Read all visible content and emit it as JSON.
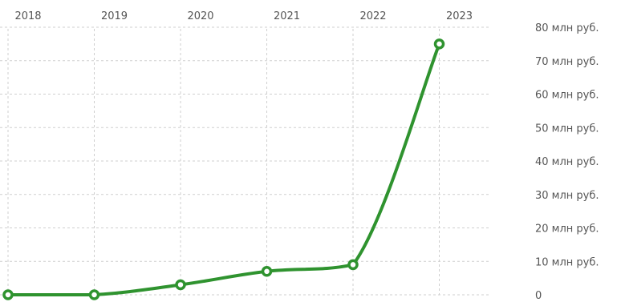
{
  "chart_data": {
    "type": "line",
    "x": [
      "2018",
      "2019",
      "2020",
      "2021",
      "2022",
      "2023"
    ],
    "series": [
      {
        "values": [
          0,
          0,
          3,
          7,
          9,
          75
        ],
        "color": "#2f932f"
      }
    ],
    "x_ticks": [
      "2018",
      "2019",
      "2020",
      "2021",
      "2022",
      "2023"
    ],
    "y_ticks": [
      {
        "value": 0,
        "label": "0"
      },
      {
        "value": 10,
        "label": "10 млн руб."
      },
      {
        "value": 20,
        "label": "20 млн руб."
      },
      {
        "value": 30,
        "label": "30 млн руб."
      },
      {
        "value": 40,
        "label": "40 млн руб."
      },
      {
        "value": 50,
        "label": "50 млн руб."
      },
      {
        "value": 60,
        "label": "60 млн руб."
      },
      {
        "value": 70,
        "label": "70 млн руб."
      },
      {
        "value": 80,
        "label": "80 млн руб."
      }
    ],
    "ylim": [
      0,
      80
    ],
    "y_axis_position": "right",
    "x_axis_position": "top",
    "grid": true,
    "title": "",
    "xlabel": "",
    "ylabel": ""
  }
}
